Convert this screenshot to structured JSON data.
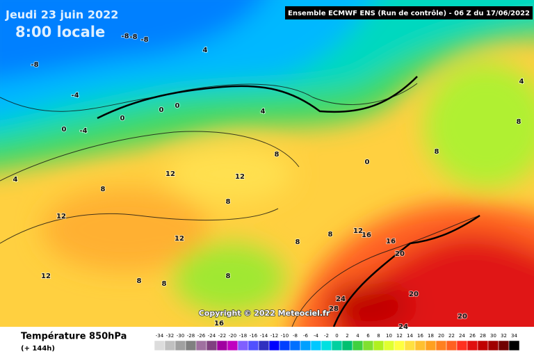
{
  "header": {
    "date": "Jeudi 23 juin 2022",
    "time": "8:00 locale",
    "model": "Ensemble ECMWF ENS  (Run de contrôle)  - 06 Z du 17/06/2022"
  },
  "copyright": "Copyright © 2022 Meteociel.fr",
  "footer": {
    "field": "Température 850hPa",
    "lead": "(+ 144h)"
  },
  "contour_labels": [
    -8,
    -8,
    -8,
    -8,
    -4,
    -4,
    0,
    0,
    0,
    0,
    4,
    4,
    4,
    8,
    8,
    12,
    12,
    8,
    12,
    8,
    12,
    12,
    8,
    8,
    16,
    20,
    20,
    24,
    28,
    20,
    24,
    16,
    0,
    8,
    8,
    16,
    8,
    12,
    8,
    4
  ],
  "legend": {
    "scale": [
      -34,
      -32,
      -30,
      -28,
      -26,
      -24,
      -22,
      -20,
      -18,
      -16,
      -14,
      -12,
      -10,
      -8,
      -6,
      -4,
      -2,
      0,
      2,
      4,
      6,
      8,
      10,
      12,
      14,
      16,
      18,
      20,
      22,
      24,
      26,
      28,
      30,
      32,
      34
    ],
    "colors": [
      "#dcdcdc",
      "#c0c0c0",
      "#a0a0a0",
      "#808080",
      "#a070a0",
      "#804080",
      "#a000a0",
      "#c000c0",
      "#8060ff",
      "#5050ff",
      "#3030c0",
      "#0000ff",
      "#0040ff",
      "#0070ff",
      "#00a0ff",
      "#00c8ff",
      "#00e0e0",
      "#00d0a0",
      "#00c070",
      "#40d040",
      "#80e030",
      "#b0f020",
      "#e0ff30",
      "#ffff40",
      "#ffe040",
      "#ffc030",
      "#ffa020",
      "#ff8020",
      "#ff6020",
      "#ff3020",
      "#e01010",
      "#c00000",
      "#a00000",
      "#700000",
      "#000000"
    ]
  }
}
